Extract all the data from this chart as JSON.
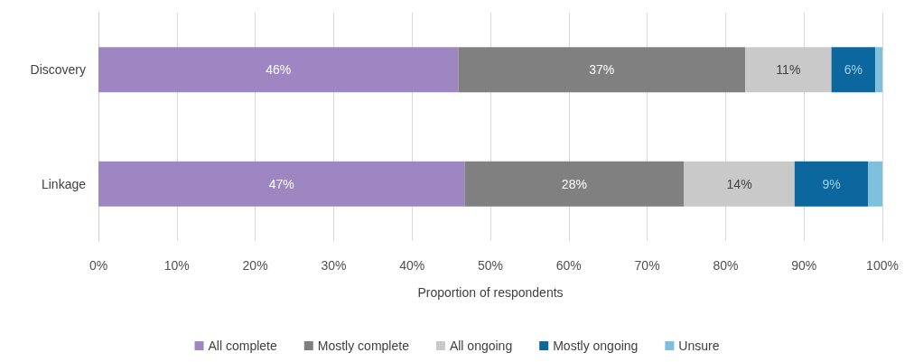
{
  "chart_data": {
    "type": "bar",
    "orientation": "horizontal",
    "stacked": true,
    "xlabel": "Proportion of respondents",
    "categories": [
      "Discovery",
      "Linkage"
    ],
    "series": [
      {
        "name": "All complete",
        "color": "#9e86c2",
        "values": [
          45.9,
          46.7
        ],
        "value_labels": [
          "46%",
          "47%"
        ]
      },
      {
        "name": "Mostly complete",
        "color": "#808080",
        "values": [
          36.6,
          28.0
        ],
        "value_labels": [
          "37%",
          "28%"
        ]
      },
      {
        "name": "All ongoing",
        "color": "#c9c9c9",
        "values": [
          11.0,
          14.1
        ],
        "value_labels": [
          "11%",
          "14%"
        ]
      },
      {
        "name": "Mostly ongoing",
        "color": "#0b679e",
        "values": [
          5.6,
          9.4
        ],
        "value_labels": [
          "6%",
          "9%"
        ]
      },
      {
        "name": "Unsure",
        "color": "#7ec0dc",
        "values": [
          0.9,
          1.8
        ],
        "value_labels": [
          null,
          null
        ]
      }
    ],
    "xlim": [
      0,
      100
    ],
    "xticks": [
      {
        "value": 0,
        "label": "0%"
      },
      {
        "value": 10,
        "label": "10%"
      },
      {
        "value": 20,
        "label": "20%"
      },
      {
        "value": 30,
        "label": "30%"
      },
      {
        "value": 40,
        "label": "40%"
      },
      {
        "value": 50,
        "label": "50%"
      },
      {
        "value": 60,
        "label": "60%"
      },
      {
        "value": 70,
        "label": "70%"
      },
      {
        "value": 80,
        "label": "80%"
      },
      {
        "value": 90,
        "label": "90%"
      },
      {
        "value": 100,
        "label": "100%"
      }
    ],
    "grid": "x",
    "legend": "bottom"
  }
}
